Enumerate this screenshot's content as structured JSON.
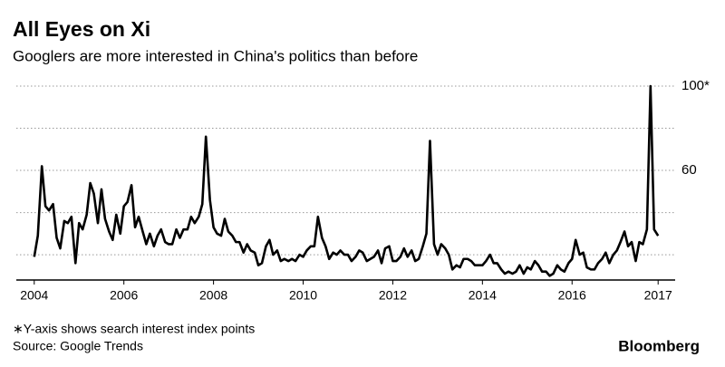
{
  "chart_data": {
    "type": "line",
    "title": "All Eyes on Xi",
    "subtitle": "Googlers are more interested in China's politics than before",
    "note": "∗Y-axis shows search interest index points",
    "source": "Source: Google Trends",
    "brand": "Bloomberg",
    "color": "#000000",
    "x": [
      2004.0,
      2004.08,
      2004.17,
      2004.25,
      2004.33,
      2004.42,
      2004.5,
      2004.58,
      2004.67,
      2004.75,
      2004.83,
      2004.92,
      2005.0,
      2005.08,
      2005.17,
      2005.25,
      2005.33,
      2005.42,
      2005.5,
      2005.58,
      2005.67,
      2005.75,
      2005.83,
      2005.92,
      2006.0,
      2006.08,
      2006.17,
      2006.25,
      2006.33,
      2006.42,
      2006.5,
      2006.58,
      2006.67,
      2006.75,
      2006.83,
      2006.92,
      2007.0,
      2007.08,
      2007.17,
      2007.25,
      2007.33,
      2007.42,
      2007.5,
      2007.58,
      2007.67,
      2007.75,
      2007.83,
      2007.92,
      2008.0,
      2008.08,
      2008.17,
      2008.25,
      2008.33,
      2008.42,
      2008.5,
      2008.58,
      2008.67,
      2008.75,
      2008.83,
      2008.92,
      2009.0,
      2009.08,
      2009.17,
      2009.25,
      2009.33,
      2009.42,
      2009.5,
      2009.58,
      2009.67,
      2009.75,
      2009.83,
      2009.92,
      2010.0,
      2010.08,
      2010.17,
      2010.25,
      2010.33,
      2010.42,
      2010.5,
      2010.58,
      2010.67,
      2010.75,
      2010.83,
      2010.92,
      2011.0,
      2011.08,
      2011.17,
      2011.25,
      2011.33,
      2011.42,
      2011.5,
      2011.58,
      2011.67,
      2011.75,
      2011.83,
      2011.92,
      2012.0,
      2012.08,
      2012.17,
      2012.25,
      2012.33,
      2012.42,
      2012.5,
      2012.58,
      2012.67,
      2012.75,
      2012.83,
      2012.92,
      2013.0,
      2013.08,
      2013.17,
      2013.25,
      2013.33,
      2013.42,
      2013.5,
      2013.58,
      2013.67,
      2013.75,
      2013.83,
      2013.92,
      2014.0,
      2014.08,
      2014.17,
      2014.25,
      2014.33,
      2014.42,
      2014.5,
      2014.58,
      2014.67,
      2014.75,
      2014.83,
      2014.92,
      2015.0,
      2015.08,
      2015.17,
      2015.25,
      2015.33,
      2015.42,
      2015.5,
      2015.58,
      2015.67,
      2015.75,
      2015.83,
      2015.92,
      2016.0,
      2016.08,
      2016.17,
      2016.25,
      2016.33,
      2016.42,
      2016.5,
      2016.58,
      2016.67,
      2016.75,
      2016.83,
      2016.92,
      2017.0,
      2017.08,
      2017.17,
      2017.25,
      2017.33,
      2017.42,
      2017.5,
      2017.58,
      2017.67,
      2017.75,
      2017.83,
      2017.92
    ],
    "values": [
      19,
      29,
      62,
      43,
      41,
      44,
      28,
      23,
      36,
      35,
      38,
      16,
      35,
      32,
      39,
      54,
      49,
      35,
      51,
      37,
      31,
      27,
      39,
      30,
      43,
      45,
      53,
      33,
      38,
      31,
      25,
      30,
      24,
      29,
      32,
      26,
      25,
      25,
      32,
      28,
      32,
      32,
      38,
      35,
      38,
      44,
      76,
      46,
      33,
      30,
      29,
      37,
      31,
      29,
      26,
      26,
      21,
      25,
      22,
      21,
      15,
      16,
      24,
      27,
      20,
      22,
      17,
      18,
      17,
      18,
      17,
      20,
      19,
      22,
      24,
      24,
      38,
      28,
      24,
      18,
      21,
      20,
      22,
      20,
      20,
      17,
      19,
      22,
      21,
      17,
      18,
      19,
      22,
      16,
      23,
      24,
      17,
      17,
      19,
      23,
      19,
      22,
      17,
      18,
      24,
      30,
      74,
      25,
      20,
      25,
      23,
      20,
      13,
      15,
      14,
      18,
      18,
      17,
      15,
      15,
      15,
      17,
      20,
      16,
      16,
      13,
      11,
      12,
      11,
      12,
      15,
      11,
      14,
      13,
      17,
      15,
      12,
      12,
      10,
      11,
      15,
      13,
      12,
      16,
      18,
      27,
      20,
      21,
      14,
      13,
      13,
      16,
      18,
      21,
      16,
      20,
      22,
      26,
      31,
      24,
      26,
      17,
      26,
      25,
      32,
      100,
      32,
      29
    ],
    "xlim": [
      2003.6,
      2018.3
    ],
    "xticks": [
      2004,
      2006,
      2008,
      2010,
      2012,
      2014,
      2016,
      {
        "value": 2017.92,
        "label": "2017"
      }
    ],
    "ylim": [
      8,
      100
    ],
    "yticks": [
      60,
      {
        "value": 100,
        "label": "100*"
      }
    ],
    "ygrid": [
      20,
      40,
      60,
      80,
      100
    ]
  }
}
